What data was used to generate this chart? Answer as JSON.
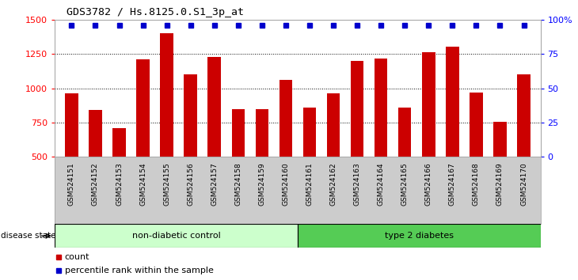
{
  "title": "GDS3782 / Hs.8125.0.S1_3p_at",
  "samples": [
    "GSM524151",
    "GSM524152",
    "GSM524153",
    "GSM524154",
    "GSM524155",
    "GSM524156",
    "GSM524157",
    "GSM524158",
    "GSM524159",
    "GSM524160",
    "GSM524161",
    "GSM524162",
    "GSM524163",
    "GSM524164",
    "GSM524165",
    "GSM524166",
    "GSM524167",
    "GSM524168",
    "GSM524169",
    "GSM524170"
  ],
  "counts": [
    960,
    840,
    710,
    1210,
    1400,
    1100,
    1230,
    850,
    850,
    1060,
    860,
    960,
    1200,
    1215,
    860,
    1260,
    1300,
    970,
    755,
    1100
  ],
  "percentile_ranks": [
    99,
    99,
    99,
    99,
    99,
    99,
    99,
    99,
    99,
    99,
    99,
    99,
    99,
    99,
    99,
    99,
    99,
    99,
    99,
    99
  ],
  "bar_color": "#cc0000",
  "dot_color": "#0000cc",
  "ylim_left": [
    500,
    1500
  ],
  "ylim_right": [
    0,
    100
  ],
  "yticks_left": [
    500,
    750,
    1000,
    1250,
    1500
  ],
  "yticks_right": [
    0,
    25,
    50,
    75,
    100
  ],
  "grid_color": "#000000",
  "non_diabetic_count": 10,
  "type2_diabetes_count": 10,
  "group_label_ndc": "non-diabetic control",
  "group_label_t2d": "type 2 diabetes",
  "disease_state_label": "disease state",
  "legend_count_label": "count",
  "legend_pct_label": "percentile rank within the sample",
  "bg_color": "#ffffff",
  "plot_bg_color": "#ffffff",
  "tick_label_bg": "#cccccc",
  "ndc_fill": "#ccffcc",
  "t2d_fill": "#55cc55",
  "bar_width": 0.55,
  "bar_bottom": 500
}
